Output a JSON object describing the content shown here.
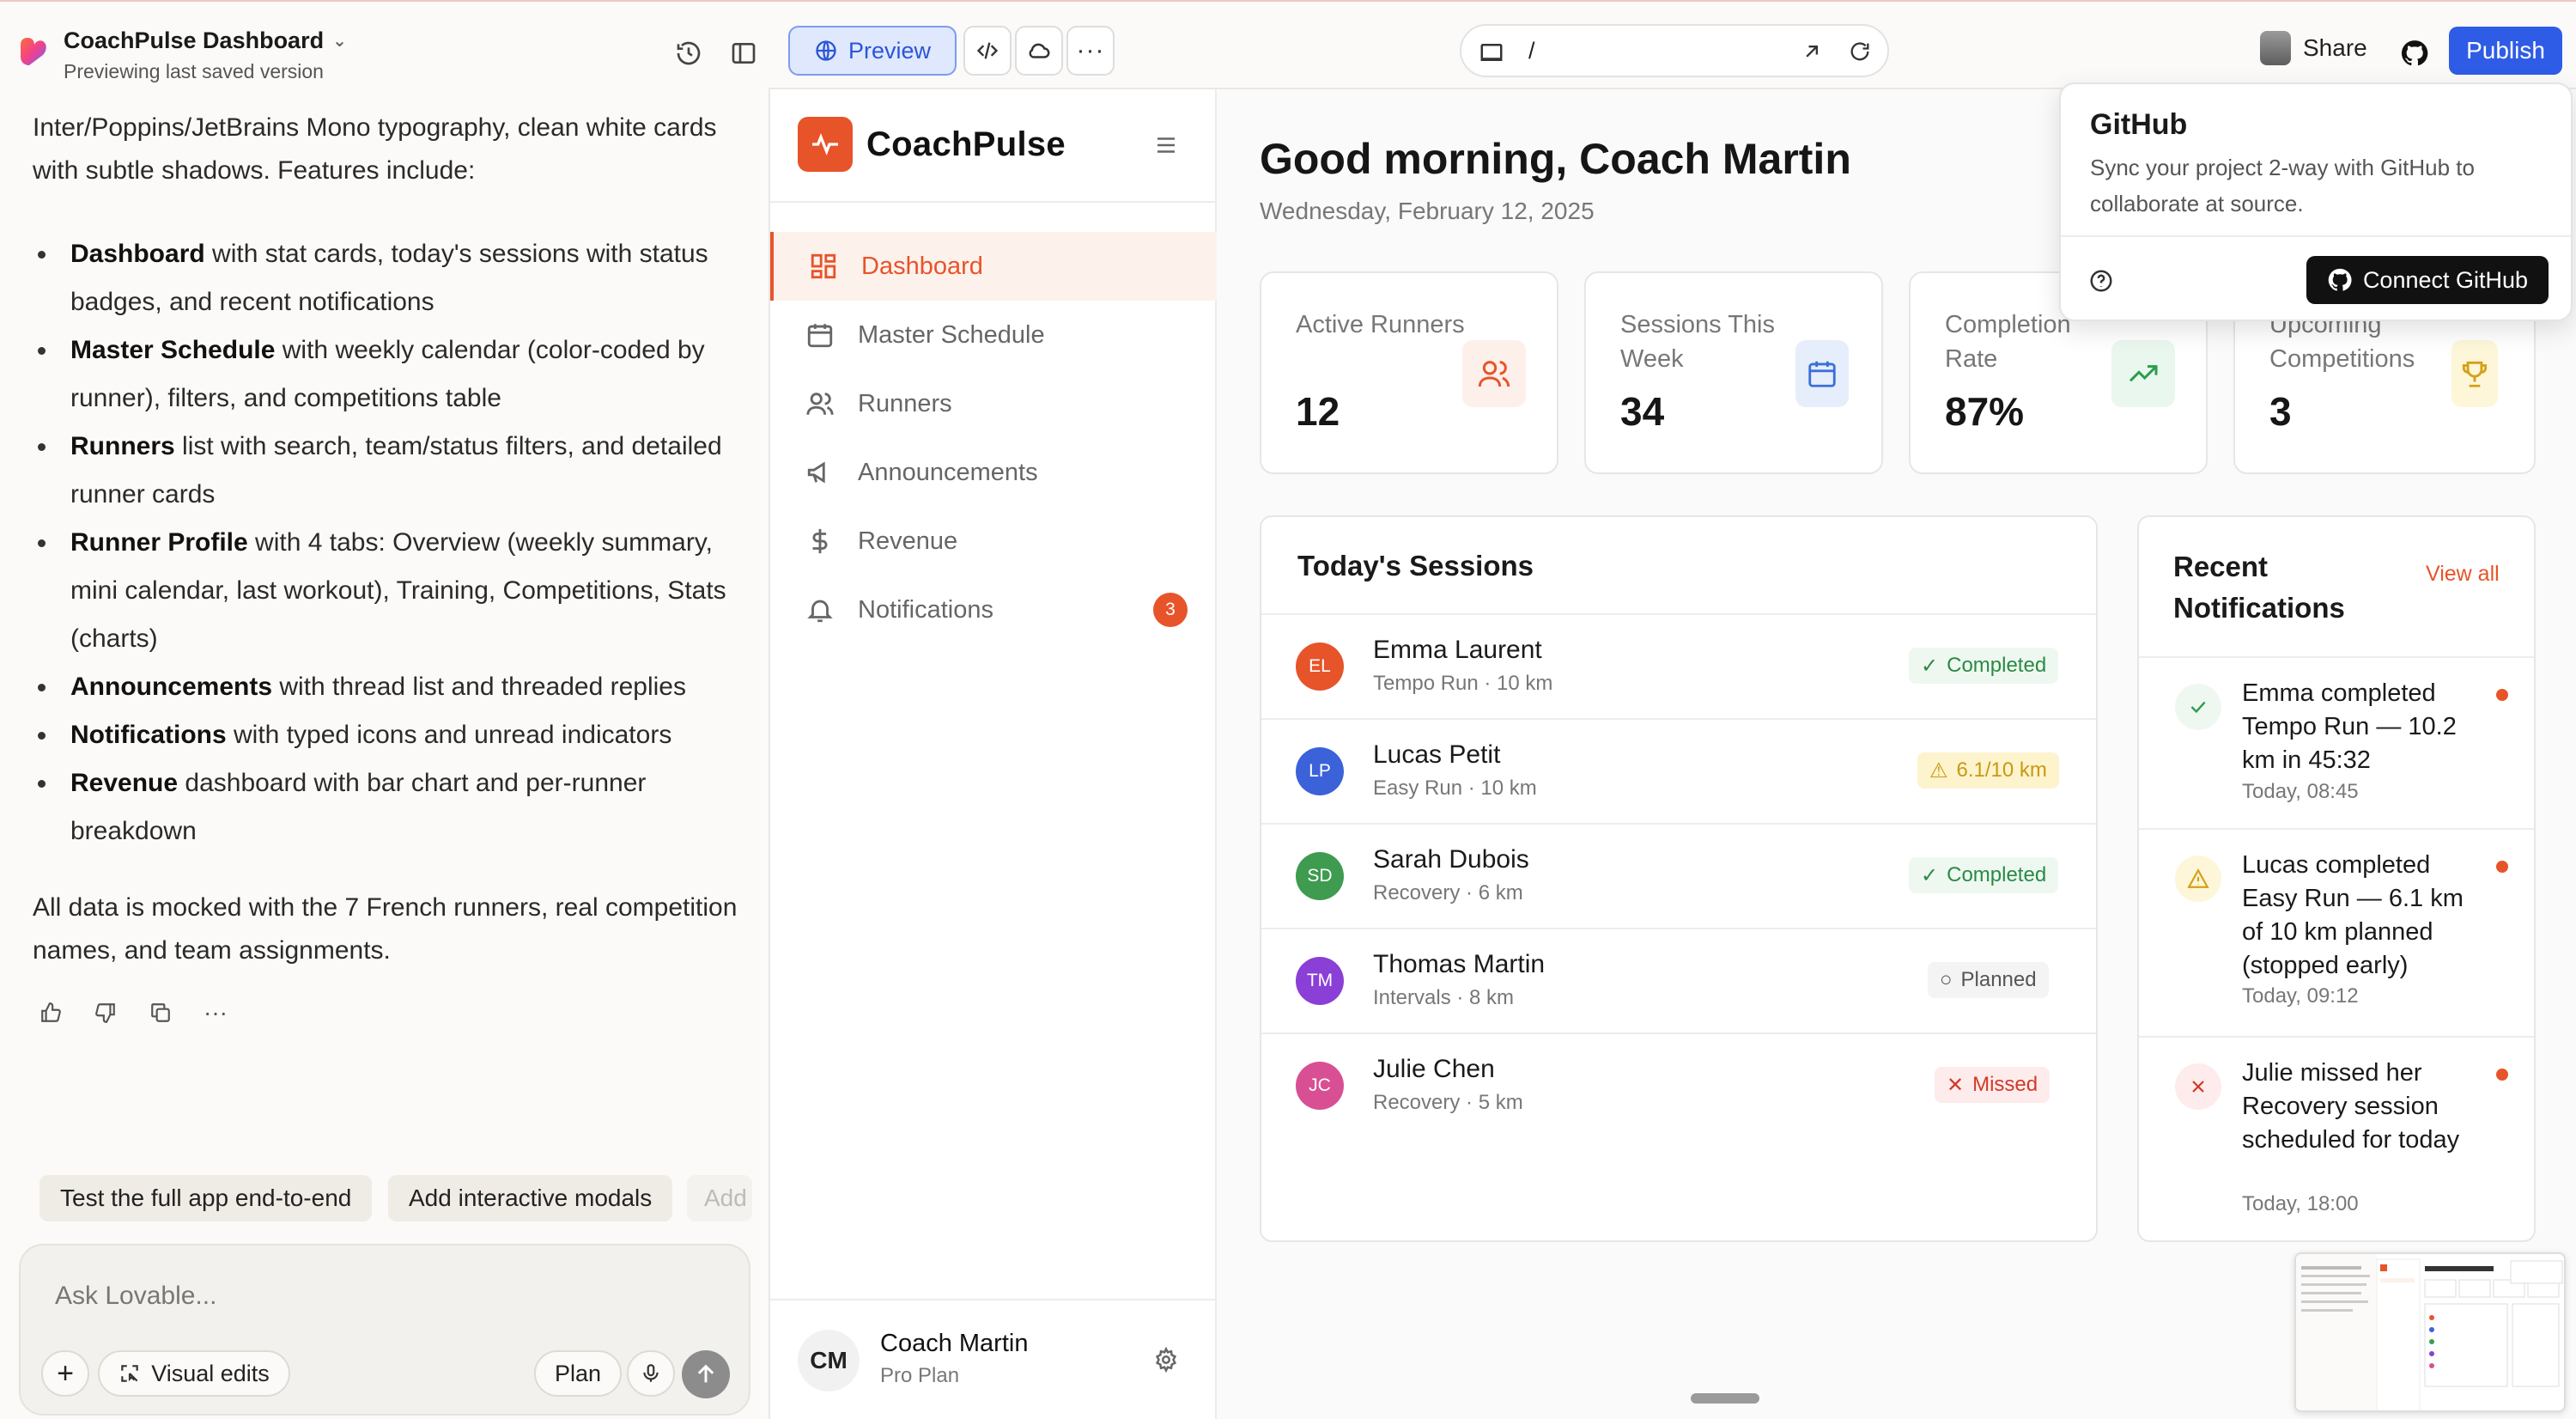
{
  "topbar": {
    "project_title": "CoachPulse Dashboard",
    "project_subtitle": "Previewing last saved version",
    "preview_label": "Preview",
    "url_path": "/",
    "share_label": "Share",
    "publish_label": "Publish"
  },
  "chat": {
    "intro": "Inter/Poppins/JetBrains Mono typography, clean white cards with subtle shadows. Features include:",
    "features": [
      {
        "bold": "Dashboard",
        "text": " with stat cards, today's sessions with status badges, and recent notifications"
      },
      {
        "bold": "Master Schedule",
        "text": " with weekly calendar (color-coded by runner), filters, and competitions table"
      },
      {
        "bold": "Runners",
        "text": " list with search, team/status filters, and detailed runner cards"
      },
      {
        "bold": "Runner Profile",
        "text": " with 4 tabs: Overview (weekly summary, mini calendar, last workout), Training, Competitions, Stats (charts)"
      },
      {
        "bold": "Announcements",
        "text": " with thread list and threaded replies"
      },
      {
        "bold": "Notifications",
        "text": " with typed icons and unread indicators"
      },
      {
        "bold": "Revenue",
        "text": " dashboard with bar chart and per-runner breakdown"
      }
    ],
    "outro": "All data is mocked with the 7 French runners, real competition names, and team assignments.",
    "suggestions": [
      "Test the full app end-to-end",
      "Add interactive modals",
      "Add"
    ],
    "composer_placeholder": "Ask Lovable...",
    "visual_edits_label": "Visual edits",
    "plan_label": "Plan"
  },
  "app": {
    "brand": "CoachPulse",
    "nav": [
      {
        "label": "Dashboard",
        "active": true
      },
      {
        "label": "Master Schedule"
      },
      {
        "label": "Runners"
      },
      {
        "label": "Announcements"
      },
      {
        "label": "Revenue"
      },
      {
        "label": "Notifications",
        "badge": "3"
      }
    ],
    "user": {
      "initials": "CM",
      "name": "Coach Martin",
      "plan": "Pro Plan"
    },
    "greeting": "Good morning, Coach Martin",
    "date": "Wednesday, February 12, 2025",
    "stats": [
      {
        "label": "Active Runners",
        "value": "12",
        "icon": "users-icon",
        "color": "#e7542a"
      },
      {
        "label": "Sessions This Week",
        "value": "34",
        "icon": "calendar-icon",
        "color": "#3b6fd8"
      },
      {
        "label": "Completion Rate",
        "value": "87%",
        "icon": "trending-up-icon",
        "color": "#2a9d4b"
      },
      {
        "label": "Upcoming Competitions",
        "value": "3",
        "icon": "trophy-icon",
        "color": "#d4a017"
      }
    ],
    "sessions_title": "Today's Sessions",
    "sessions": [
      {
        "initials": "EL",
        "name": "Emma Laurent",
        "meta": "Tempo Run · 10 km",
        "status": "Completed",
        "avatar_color": "#e7542a"
      },
      {
        "initials": "LP",
        "name": "Lucas Petit",
        "meta": "Easy Run · 10 km",
        "status": "6.1/10 km",
        "avatar_color": "#3b62d8"
      },
      {
        "initials": "SD",
        "name": "Sarah Dubois",
        "meta": "Recovery · 6 km",
        "status": "Completed",
        "avatar_color": "#3f9b4f"
      },
      {
        "initials": "TM",
        "name": "Thomas Martin",
        "meta": "Intervals · 8 km",
        "status": "Planned",
        "avatar_color": "#8a3fd6"
      },
      {
        "initials": "JC",
        "name": "Julie Chen",
        "meta": "Recovery · 5 km",
        "status": "Missed",
        "avatar_color": "#d94f94"
      }
    ],
    "notifications_title": "Recent Notifications",
    "view_all": "View all",
    "notifications": [
      {
        "text": "Emma completed Tempo Run — 10.2 km in 45:32",
        "time": "Today, 08:45",
        "type": "success"
      },
      {
        "text": "Lucas completed Easy Run — 6.1 km of 10 km planned (stopped early)",
        "time": "Today, 09:12",
        "type": "warning"
      },
      {
        "text": "Julie missed her Recovery session scheduled for today",
        "time": "Today, 18:00",
        "type": "error"
      }
    ]
  },
  "github": {
    "title": "GitHub",
    "description": "Sync your project 2-way with GitHub to collaborate at source.",
    "connect_label": "Connect GitHub"
  }
}
